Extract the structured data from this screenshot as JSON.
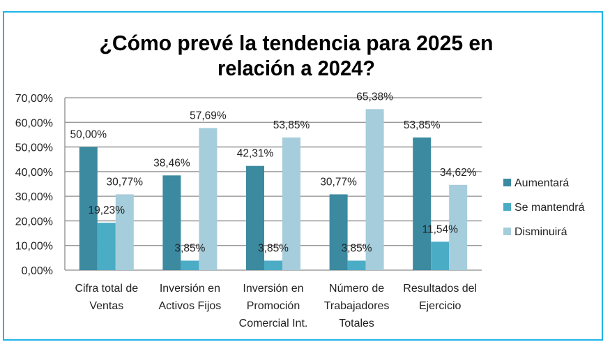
{
  "chart_data": {
    "type": "bar",
    "title_lines": [
      "¿Cómo prevé la tendencia para 2025 en",
      "relación a 2024?"
    ],
    "categories": [
      [
        "Cifra total de",
        "Ventas"
      ],
      [
        "Inversión en",
        "Activos Fijos"
      ],
      [
        "Inversión en",
        "Promoción",
        "Comercial Int."
      ],
      [
        "Número de",
        "Trabajadores",
        "Totales"
      ],
      [
        "Resultados del",
        "Ejercicio"
      ]
    ],
    "series": [
      {
        "name": "Aumentará",
        "color": "#3b8aa0",
        "values": [
          50.0,
          38.46,
          42.31,
          30.77,
          53.85
        ],
        "labels": [
          "50,00%",
          "38,46%",
          "42,31%",
          "30,77%",
          "53,85%"
        ]
      },
      {
        "name": "Se mantendrá",
        "color": "#4bacc6",
        "values": [
          19.23,
          3.85,
          3.85,
          3.85,
          11.54
        ],
        "labels": [
          "19,23%",
          "3,85%",
          "3,85%",
          "3,85%",
          "11,54%"
        ]
      },
      {
        "name": "Disminuirá",
        "color": "#a5cddb",
        "values": [
          30.77,
          57.69,
          53.85,
          65.38,
          34.62
        ],
        "labels": [
          "30,77%",
          "57,69%",
          "53,85%",
          "65,38%",
          "34,62%"
        ]
      }
    ],
    "ylim": [
      0,
      70
    ],
    "yticks": [
      "0,00%",
      "10,00%",
      "20,00%",
      "30,00%",
      "40,00%",
      "50,00%",
      "60,00%",
      "70,00%"
    ],
    "grid": true,
    "legend_position": "right",
    "frame_color": "#1eb4e8"
  }
}
